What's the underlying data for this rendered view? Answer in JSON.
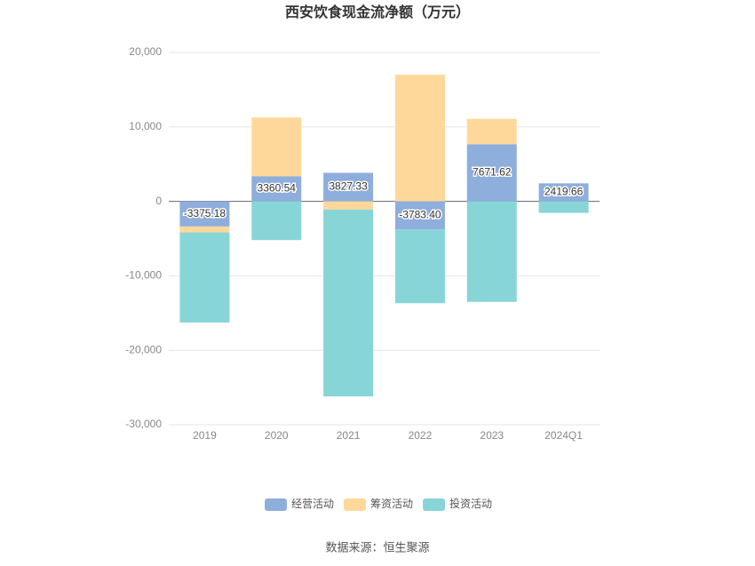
{
  "chart_data": {
    "type": "stacked-bar",
    "title": "西安饮食现金流净额（万元）",
    "categories": [
      "2019",
      "2020",
      "2021",
      "2022",
      "2023",
      "2024Q1"
    ],
    "series": [
      {
        "name": "经营活动",
        "color": "#8eaedc",
        "values": [
          -3375.18,
          3360.54,
          3827.33,
          -3783.4,
          7671.62,
          2419.66
        ],
        "value_labels": [
          "-3375.18",
          "3360.54",
          "3827.33",
          "-3783.40",
          "7671.62",
          "2419.66"
        ]
      },
      {
        "name": "筹资活动",
        "color": "#fdd89a",
        "values": [
          -800,
          7900,
          -1100,
          17000,
          3400,
          0
        ]
      },
      {
        "name": "投资活动",
        "color": "#88d5d8",
        "values": [
          -12100,
          -5200,
          -25100,
          -9900,
          -13500,
          -1550
        ]
      }
    ],
    "ylim": [
      -30000,
      20000
    ],
    "yticks": [
      {
        "value": -30000,
        "label": "-30,000"
      },
      {
        "value": -20000,
        "label": "-20,000"
      },
      {
        "value": -10000,
        "label": "-10,000"
      },
      0,
      {
        "value": 10000,
        "label": "10,000"
      },
      {
        "value": 20000,
        "label": "20,000"
      }
    ],
    "grid": true,
    "legend": "bottom",
    "source": "数据来源：恒生聚源"
  }
}
